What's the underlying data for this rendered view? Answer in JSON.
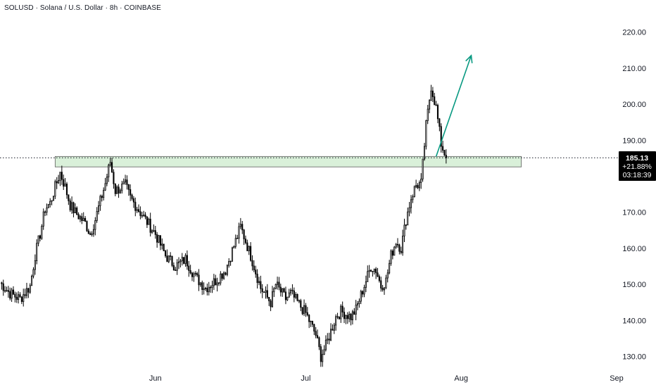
{
  "header": {
    "symbol_line": "SOLUSD · Solana / U.S. Dollar · 8h · COINBASE"
  },
  "price_tag": {
    "price": "185.13",
    "change": "+21.88%",
    "countdown": "03:18:39"
  },
  "colors": {
    "up": "#000000",
    "down": "#000000",
    "zone_fill": "#d9f0d9",
    "zone_stroke": "#5b5b5b",
    "arrow": "#089981",
    "dotted_line": "#131722",
    "tag_bg": "#000000"
  },
  "chart_data": {
    "type": "candlestick",
    "title": "SOLUSD · Solana / U.S. Dollar · 8h · COINBASE",
    "ylim": [
      127,
      225
    ],
    "y_ticks": [
      "220.00",
      "210.00",
      "200.00",
      "190.00",
      "180.00",
      "170.00",
      "160.00",
      "150.00",
      "140.00",
      "130.00"
    ],
    "y_tick_values": [
      220,
      210,
      200,
      190,
      180,
      170,
      160,
      150,
      140,
      130
    ],
    "x_ticks": [
      "Jun",
      "Jul",
      "Aug",
      "Sep"
    ],
    "x_tick_dates": [
      "2024-06-01",
      "2024-07-01",
      "2024-08-01",
      "2024-09-01"
    ],
    "x_range": [
      "2024-05-01",
      "2024-09-01"
    ],
    "current_price": 185.13,
    "resistance_zone": {
      "from": "2024-05-12",
      "to": "2024-08-13",
      "low": 182.6,
      "high": 185.5
    },
    "projection_arrow": {
      "from_date": "2024-07-27",
      "from_price": 185.5,
      "to_date": "2024-08-03",
      "to_price": 213.5
    },
    "close_path": [
      [
        "2024-05-01",
        150.5
      ],
      [
        "2024-05-03",
        147.5
      ],
      [
        "2024-05-05",
        146.0
      ],
      [
        "2024-05-07",
        149.5
      ],
      [
        "2024-05-08",
        158.0
      ],
      [
        "2024-05-09",
        164.0
      ],
      [
        "2024-05-10",
        171.0
      ],
      [
        "2024-05-11",
        172.5
      ],
      [
        "2024-05-12",
        177.0
      ],
      [
        "2024-05-13",
        181.0
      ],
      [
        "2024-05-14",
        177.0
      ],
      [
        "2024-05-15",
        172.0
      ],
      [
        "2024-05-16",
        170.0
      ],
      [
        "2024-05-18",
        167.0
      ],
      [
        "2024-05-19",
        164.0
      ],
      [
        "2024-05-20",
        168.0
      ],
      [
        "2024-05-21",
        173.0
      ],
      [
        "2024-05-22",
        178.0
      ],
      [
        "2024-05-23",
        184.0
      ],
      [
        "2024-05-24",
        176.0
      ],
      [
        "2024-05-26",
        177.5
      ],
      [
        "2024-05-27",
        174.0
      ],
      [
        "2024-05-28",
        172.0
      ],
      [
        "2024-05-30",
        168.0
      ],
      [
        "2024-06-01",
        164.0
      ],
      [
        "2024-06-03",
        158.0
      ],
      [
        "2024-06-05",
        155.0
      ],
      [
        "2024-06-07",
        157.0
      ],
      [
        "2024-06-09",
        152.0
      ],
      [
        "2024-06-11",
        149.0
      ],
      [
        "2024-06-13",
        151.0
      ],
      [
        "2024-06-15",
        154.0
      ],
      [
        "2024-06-17",
        162.0
      ],
      [
        "2024-06-18",
        166.0
      ],
      [
        "2024-06-20",
        158.0
      ],
      [
        "2024-06-22",
        149.0
      ],
      [
        "2024-06-24",
        145.0
      ],
      [
        "2024-06-25",
        150.0
      ],
      [
        "2024-06-27",
        146.0
      ],
      [
        "2024-06-28",
        147.5
      ],
      [
        "2024-07-01",
        142.0
      ],
      [
        "2024-07-03",
        136.0
      ],
      [
        "2024-07-04",
        130.0
      ],
      [
        "2024-07-05",
        133.0
      ],
      [
        "2024-07-07",
        141.0
      ],
      [
        "2024-07-08",
        142.5
      ],
      [
        "2024-07-10",
        141.0
      ],
      [
        "2024-07-11",
        143.0
      ],
      [
        "2024-07-13",
        151.0
      ],
      [
        "2024-07-14",
        155.0
      ],
      [
        "2024-07-15",
        154.0
      ],
      [
        "2024-07-16",
        149.5
      ],
      [
        "2024-07-17",
        151.0
      ],
      [
        "2024-07-18",
        158.0
      ],
      [
        "2024-07-19",
        162.0
      ],
      [
        "2024-07-20",
        160.0
      ],
      [
        "2024-07-21",
        168.0
      ],
      [
        "2024-07-22",
        174.0
      ],
      [
        "2024-07-23",
        177.5
      ],
      [
        "2024-07-24",
        178.0
      ],
      [
        "2024-07-25",
        194.0
      ],
      [
        "2024-07-26",
        205.0
      ],
      [
        "2024-07-27",
        199.0
      ],
      [
        "2024-07-28",
        189.0
      ],
      [
        "2024-07-29",
        185.1
      ]
    ]
  }
}
